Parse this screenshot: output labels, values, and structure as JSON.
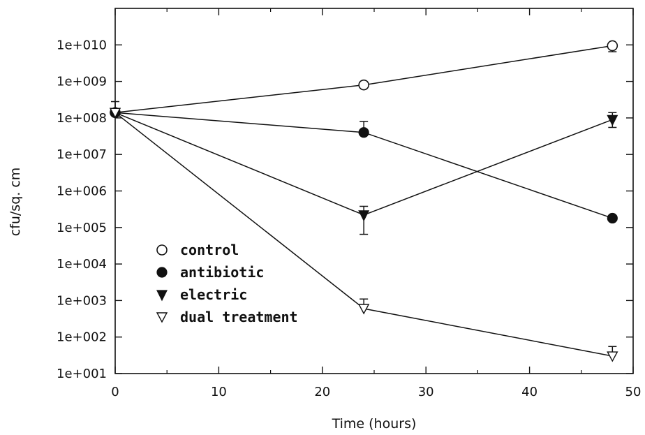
{
  "chart_data": {
    "type": "line",
    "xlabel": "Time (hours)",
    "ylabel": "cfu/sq. cm",
    "xlim": [
      0,
      50
    ],
    "ylim": [
      10,
      100000000000
    ],
    "yscale": "log",
    "x_ticks": [
      "0",
      "10",
      "20",
      "30",
      "40",
      "50"
    ],
    "y_ticks": [
      "1e+001",
      "1e+002",
      "1e+003",
      "1e+004",
      "1e+005",
      "1e+006",
      "1e+007",
      "1e+008",
      "1e+009",
      "1e+010"
    ],
    "grid": false,
    "legend_position": "lower-left",
    "series": [
      {
        "name": "control",
        "marker": "circle-open",
        "x": [
          0,
          24,
          48
        ],
        "y": [
          140000000,
          800000000,
          9500000000
        ],
        "error_upper": [
          280000000,
          null,
          null
        ],
        "error_lower": [
          null,
          null,
          6500000000
        ]
      },
      {
        "name": "antibiotic",
        "marker": "circle-filled",
        "x": [
          0,
          24,
          48
        ],
        "y": [
          140000000,
          40000000,
          180000
        ],
        "error_upper": [
          null,
          80000000,
          null
        ],
        "error_lower": [
          null,
          null,
          null
        ]
      },
      {
        "name": "electric",
        "marker": "triangle-down-filled",
        "x": [
          0,
          24,
          48
        ],
        "y": [
          140000000,
          220000,
          90000000
        ],
        "error_upper": [
          null,
          380000,
          140000000
        ],
        "error_lower": [
          null,
          65000,
          55000000
        ]
      },
      {
        "name": "dual treatment",
        "marker": "triangle-down-open",
        "x": [
          0,
          24,
          48
        ],
        "y": [
          140000000,
          600,
          30
        ],
        "error_upper": [
          null,
          1100,
          55
        ],
        "error_lower": [
          null,
          null,
          null
        ]
      }
    ]
  }
}
